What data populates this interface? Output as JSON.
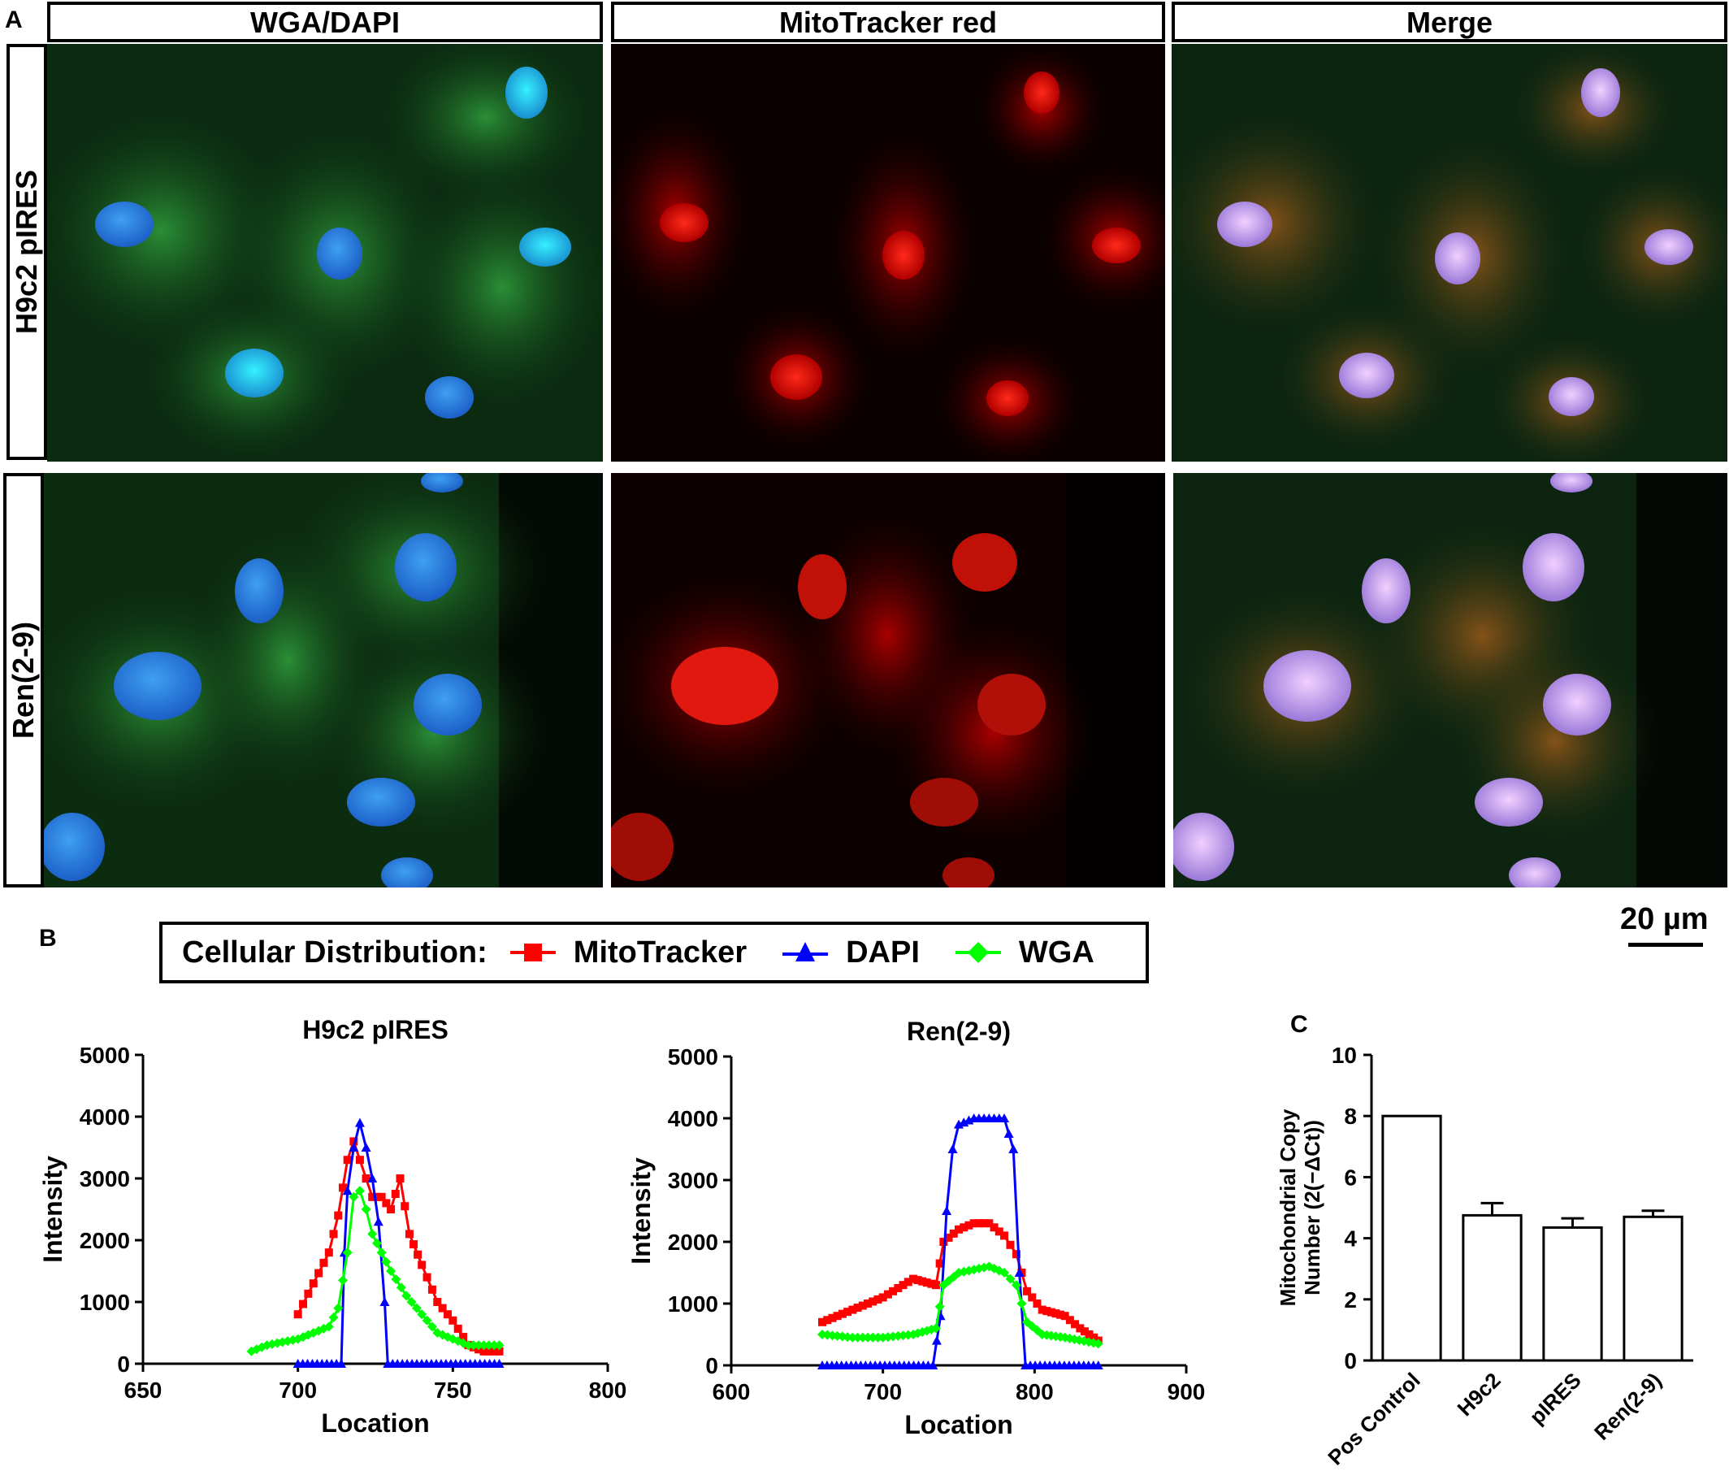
{
  "panels": {
    "a": "A",
    "b": "B",
    "c": "C"
  },
  "panel_a": {
    "columns": [
      "WGA/DAPI",
      "MitoTracker red",
      "Merge"
    ],
    "rows": [
      "H9c2 pIRES",
      "Ren(2-9)"
    ]
  },
  "scale_bar": {
    "label": "20 µm"
  },
  "legend": {
    "prefix": "Cellular Distribution:",
    "items": [
      {
        "label": "MitoTracker",
        "color": "#ff0000",
        "marker": "square"
      },
      {
        "label": "DAPI",
        "color": "#0000ff",
        "marker": "triangle"
      },
      {
        "label": "WGA",
        "color": "#00ff00",
        "marker": "diamond"
      }
    ]
  },
  "chart_data": [
    {
      "type": "line",
      "title": "H9c2 pIRES",
      "xlabel": "Location",
      "ylabel": "Intensity",
      "xlim": [
        650,
        800
      ],
      "ylim": [
        0,
        5000
      ],
      "xticks": [
        650,
        700,
        750,
        800
      ],
      "yticks": [
        0,
        1000,
        2000,
        3000,
        4000,
        5000
      ],
      "series": [
        {
          "name": "MitoTracker",
          "color": "#ff0000",
          "x": [
            700,
            705,
            710,
            713,
            716,
            718,
            720,
            722,
            724,
            727,
            730,
            733,
            736,
            740,
            745,
            750,
            755,
            760,
            765
          ],
          "y": [
            800,
            1300,
            1800,
            2400,
            3300,
            3600,
            3300,
            3000,
            2700,
            2700,
            2500,
            3000,
            2100,
            1600,
            1000,
            700,
            300,
            200,
            200
          ]
        },
        {
          "name": "DAPI",
          "color": "#0000ff",
          "x": [
            700,
            714,
            715,
            716,
            718,
            720,
            722,
            724,
            726,
            728,
            729,
            765
          ],
          "y": [
            0,
            0,
            1800,
            2800,
            3500,
            3900,
            3500,
            3000,
            2300,
            1000,
            0,
            0
          ]
        },
        {
          "name": "WGA",
          "color": "#00ff00",
          "x": [
            685,
            690,
            700,
            705,
            710,
            713,
            716,
            718,
            720,
            722,
            724,
            727,
            730,
            735,
            740,
            745,
            750,
            755,
            760,
            765
          ],
          "y": [
            200,
            300,
            400,
            500,
            600,
            900,
            1800,
            2700,
            2800,
            2500,
            2100,
            1800,
            1500,
            1100,
            800,
            500,
            400,
            300,
            300,
            300
          ]
        }
      ]
    },
    {
      "type": "line",
      "title": "Ren(2-9)",
      "xlabel": "Location",
      "ylabel": "Intensity",
      "xlim": [
        600,
        900
      ],
      "ylim": [
        0,
        5000
      ],
      "xticks": [
        600,
        700,
        800,
        900
      ],
      "yticks": [
        0,
        1000,
        2000,
        3000,
        4000,
        5000
      ],
      "series": [
        {
          "name": "MitoTracker",
          "color": "#ff0000",
          "x": [
            660,
            680,
            700,
            720,
            735,
            740,
            750,
            760,
            770,
            780,
            788,
            795,
            805,
            820,
            830,
            842
          ],
          "y": [
            700,
            900,
            1100,
            1400,
            1300,
            2000,
            2200,
            2300,
            2300,
            2100,
            1800,
            1200,
            900,
            800,
            600,
            400
          ]
        },
        {
          "name": "DAPI",
          "color": "#0000ff",
          "x": [
            660,
            733,
            738,
            742,
            746,
            750,
            760,
            770,
            780,
            786,
            790,
            794,
            842
          ],
          "y": [
            0,
            0,
            800,
            2500,
            3500,
            3900,
            4000,
            4000,
            4000,
            3500,
            1500,
            0,
            0
          ]
        },
        {
          "name": "WGA",
          "color": "#00ff00",
          "x": [
            660,
            680,
            700,
            720,
            735,
            740,
            750,
            760,
            770,
            780,
            788,
            795,
            805,
            820,
            842
          ],
          "y": [
            500,
            450,
            450,
            500,
            600,
            1300,
            1500,
            1550,
            1600,
            1500,
            1300,
            700,
            500,
            450,
            350
          ]
        }
      ]
    },
    {
      "type": "bar",
      "ylabel": "Mitochondrial Copy Number (2(−ΔCt))",
      "ylim": [
        0,
        10
      ],
      "yticks": [
        0,
        2,
        4,
        6,
        8,
        10
      ],
      "categories": [
        "Pos Control",
        "H9c2",
        "pIRES",
        "Ren(2-9)"
      ],
      "values": [
        8,
        4.75,
        4.35,
        4.7
      ],
      "errors": [
        0,
        0.4,
        0.3,
        0.2
      ]
    }
  ]
}
